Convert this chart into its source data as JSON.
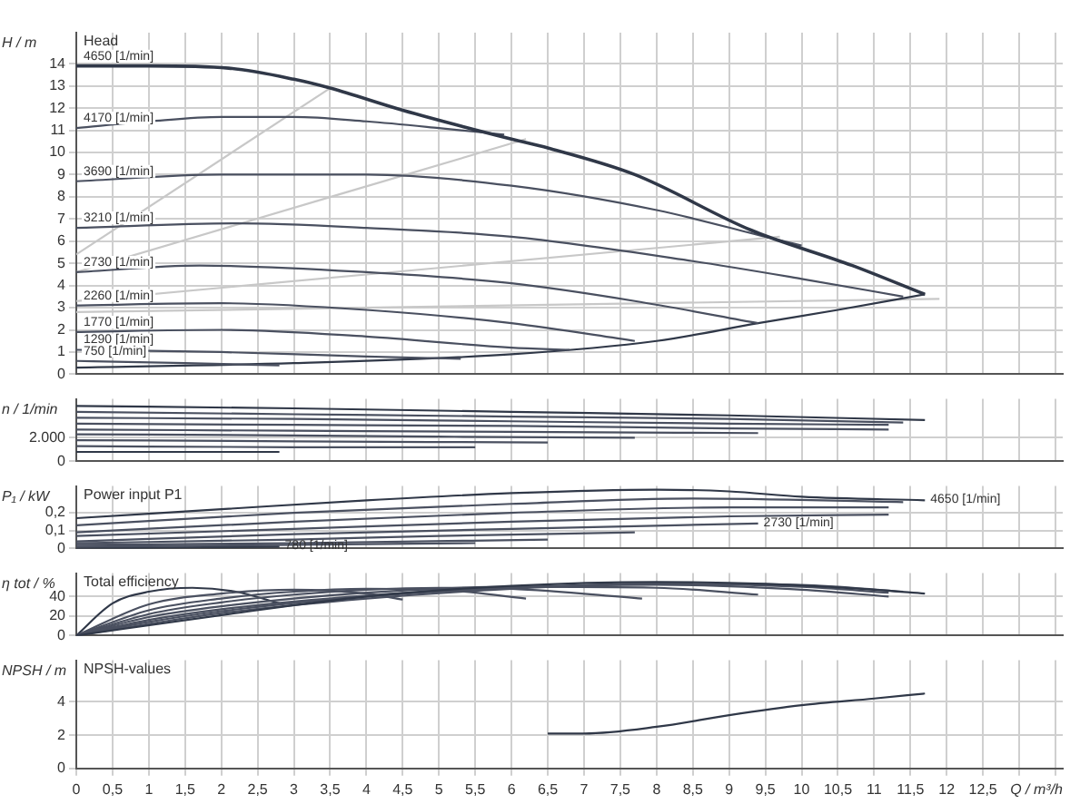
{
  "chart_data": [
    {
      "type": "line",
      "title": "Head",
      "ylabel": "H / m",
      "xlim": [
        0,
        13.6
      ],
      "ylim": [
        0,
        15.4
      ],
      "yticks": [
        0,
        1,
        2,
        3,
        4,
        5,
        6,
        7,
        8,
        9,
        10,
        11,
        12,
        13,
        14
      ],
      "xticks": [
        0,
        0.5,
        1,
        1.5,
        2,
        2.5,
        3,
        3.5,
        4,
        4.5,
        5,
        5.5,
        6,
        6.5,
        7,
        7.5,
        8,
        8.5,
        9,
        9.5,
        10,
        10.5,
        11,
        11.5,
        12,
        12.5,
        13,
        13.5
      ],
      "grid": true,
      "tick_labels": "y",
      "marker": "none",
      "line_style": "solid",
      "series": [
        {
          "name": "4650 [1/min]",
          "color": "#303848",
          "x": [
            0,
            1,
            2.1,
            3,
            3.5,
            4.5,
            6,
            6.5,
            7.7,
            9.3,
            10.7,
            11.7
          ],
          "values": [
            13.9,
            13.9,
            13.8,
            13.3,
            12.9,
            11.9,
            10.6,
            10.2,
            9.0,
            6.5,
            4.9,
            3.6
          ]
        },
        {
          "name": "4170 [1/min]",
          "color": "#4a5060",
          "x": [
            0,
            1,
            2,
            3,
            4,
            5,
            5.9
          ],
          "values": [
            11.1,
            11.4,
            11.6,
            11.6,
            11.4,
            11.1,
            10.8
          ]
        },
        {
          "name": "3690 [1/min]",
          "color": "#4a5060",
          "x": [
            0,
            2,
            4,
            6,
            8,
            9.5,
            10
          ],
          "values": [
            8.7,
            9.0,
            9.0,
            8.5,
            7.4,
            6.2,
            5.8
          ]
        },
        {
          "name": "3210 [1/min]",
          "color": "#4a5060",
          "x": [
            0,
            2.2,
            4,
            6,
            8.5,
            10,
            11.4
          ],
          "values": [
            6.6,
            6.8,
            6.6,
            6.2,
            5.1,
            4.3,
            3.5
          ]
        },
        {
          "name": "2730 [1/min]",
          "color": "#4a5060",
          "x": [
            0,
            1.7,
            4,
            6,
            7.7,
            9.4
          ],
          "values": [
            4.6,
            4.9,
            4.6,
            4.1,
            3.3,
            2.3
          ]
        },
        {
          "name": "2260 [1/min]",
          "color": "#4a5060",
          "x": [
            0,
            2,
            4,
            6,
            7.7
          ],
          "values": [
            3.1,
            3.2,
            2.9,
            2.3,
            1.5
          ]
        },
        {
          "name": "1770 [1/min]",
          "color": "#4a5060",
          "x": [
            0,
            2,
            4,
            6,
            6.8
          ],
          "values": [
            1.9,
            2.0,
            1.7,
            1.2,
            1.1
          ]
        },
        {
          "name": "1290 [1/min]",
          "color": "#4a5060",
          "x": [
            0,
            2,
            4,
            5.3
          ],
          "values": [
            1.1,
            1.0,
            0.8,
            0.7
          ]
        },
        {
          "name": "750 [1/min]",
          "color": "#4a5060",
          "x": [
            0,
            1.5,
            2.8
          ],
          "values": [
            0.6,
            0.5,
            0.4
          ]
        },
        {
          "color": "#303848",
          "x": [
            0,
            3,
            6,
            8,
            9.4,
            10.5,
            11.7
          ],
          "values": [
            0.3,
            0.5,
            0.9,
            1.5,
            2.3,
            2.9,
            3.6
          ]
        },
        {
          "color": "#c8c8c8",
          "x": [
            0,
            3.5
          ],
          "values": [
            5.4,
            12.9
          ]
        },
        {
          "color": "#c8c8c8",
          "x": [
            0,
            6.2
          ],
          "values": [
            4.6,
            10.6
          ]
        },
        {
          "color": "#c8c8c8",
          "x": [
            0,
            9.7
          ],
          "values": [
            3.3,
            6.2
          ]
        },
        {
          "color": "#c8c8c8",
          "x": [
            0,
            11.9
          ],
          "values": [
            2.8,
            3.4
          ]
        }
      ]
    },
    {
      "type": "line",
      "ylabel": "n / 1/min",
      "xlim": [
        0,
        13.6
      ],
      "ylim": [
        0,
        5300
      ],
      "yticks": [
        0,
        {
          "value": 2000,
          "label": "2.000"
        }
      ],
      "xticks": [
        0,
        0.5,
        1,
        1.5,
        2,
        2.5,
        3,
        3.5,
        4,
        4.5,
        5,
        5.5,
        6,
        6.5,
        7,
        7.5,
        8,
        8.5,
        9,
        9.5,
        10,
        10.5,
        11,
        11.5,
        12,
        12.5,
        13,
        13.5
      ],
      "grid": true,
      "tick_labels": "y",
      "marker": "none",
      "line_style": "solid",
      "series": [
        {
          "color": "#303848",
          "x": [
            0,
            3,
            6,
            9,
            11.7
          ],
          "values": [
            4700,
            4500,
            4200,
            3900,
            3500
          ]
        },
        {
          "color": "#4a5060",
          "x": [
            0,
            3,
            6,
            9,
            11.4
          ],
          "values": [
            4200,
            4000,
            3800,
            3600,
            3300
          ]
        },
        {
          "color": "#4a5060",
          "x": [
            0,
            3,
            6,
            9,
            11.2
          ],
          "values": [
            3700,
            3600,
            3400,
            3200,
            3100
          ]
        },
        {
          "color": "#4a5060",
          "x": [
            0,
            3,
            6,
            9,
            11.2
          ],
          "values": [
            3200,
            3100,
            3000,
            2800,
            2700
          ]
        },
        {
          "color": "#4a5060",
          "x": [
            0,
            3,
            6,
            9.4
          ],
          "values": [
            2700,
            2600,
            2500,
            2400
          ]
        },
        {
          "color": "#4a5060",
          "x": [
            0,
            3,
            5,
            7.7
          ],
          "values": [
            2300,
            2200,
            2100,
            2000
          ]
        },
        {
          "color": "#4a5060",
          "x": [
            0,
            3,
            6.5
          ],
          "values": [
            1800,
            1700,
            1600
          ]
        },
        {
          "color": "#4a5060",
          "x": [
            0,
            3,
            5.5
          ],
          "values": [
            1300,
            1200,
            1200
          ]
        },
        {
          "color": "#303848",
          "x": [
            0,
            2.8
          ],
          "values": [
            800,
            800
          ]
        }
      ]
    },
    {
      "type": "line",
      "title": "Power input P1",
      "ylabel": "P₁ / kW",
      "xlim": [
        0,
        13.6
      ],
      "ylim": [
        0,
        0.35
      ],
      "yticks": [
        0,
        {
          "value": 0.1,
          "label": "0,1"
        },
        {
          "value": 0.2,
          "label": "0,2"
        }
      ],
      "xticks": [
        0,
        0.5,
        1,
        1.5,
        2,
        2.5,
        3,
        3.5,
        4,
        4.5,
        5,
        5.5,
        6,
        6.5,
        7,
        7.5,
        8,
        8.5,
        9,
        9.5,
        10,
        10.5,
        11,
        11.5,
        12,
        12.5,
        13,
        13.5
      ],
      "grid": true,
      "tick_labels": "y",
      "marker": "none",
      "line_style": "solid",
      "series": [
        {
          "name": "4650 [1/min]",
          "color": "#303848",
          "x": [
            0,
            2,
            4,
            6,
            8,
            9,
            10,
            11.7
          ],
          "values": [
            0.17,
            0.22,
            0.27,
            0.31,
            0.33,
            0.32,
            0.29,
            0.27
          ]
        },
        {
          "color": "#4a5060",
          "x": [
            0,
            3,
            6,
            8.5,
            11.4
          ],
          "values": [
            0.13,
            0.2,
            0.25,
            0.28,
            0.26
          ]
        },
        {
          "color": "#4a5060",
          "x": [
            0,
            3,
            6,
            9,
            11.2
          ],
          "values": [
            0.09,
            0.15,
            0.2,
            0.23,
            0.23
          ]
        },
        {
          "color": "#4a5060",
          "x": [
            0,
            3,
            6,
            9,
            11.2
          ],
          "values": [
            0.07,
            0.11,
            0.15,
            0.18,
            0.19
          ]
        },
        {
          "name": "2730 [1/min]",
          "color": "#4a5060",
          "x": [
            0,
            3,
            6,
            9.4
          ],
          "values": [
            0.04,
            0.08,
            0.11,
            0.14
          ]
        },
        {
          "color": "#4a5060",
          "x": [
            0,
            3,
            5,
            7.7
          ],
          "values": [
            0.03,
            0.05,
            0.07,
            0.09
          ]
        },
        {
          "color": "#4a5060",
          "x": [
            0,
            3,
            6.5
          ],
          "values": [
            0.02,
            0.03,
            0.05
          ]
        },
        {
          "color": "#4a5060",
          "x": [
            0,
            3,
            5.5
          ],
          "values": [
            0.01,
            0.02,
            0.03
          ]
        },
        {
          "name": "780 [1/min]",
          "color": "#303848",
          "x": [
            0,
            2.8
          ],
          "values": [
            0.0,
            0.01
          ]
        }
      ]
    },
    {
      "type": "line",
      "title": "Total efficiency",
      "ylabel": "η tot / %",
      "xlim": [
        0,
        13.6
      ],
      "ylim": [
        0,
        64
      ],
      "yticks": [
        0,
        20,
        40
      ],
      "xticks": [
        0,
        0.5,
        1,
        1.5,
        2,
        2.5,
        3,
        3.5,
        4,
        4.5,
        5,
        5.5,
        6,
        6.5,
        7,
        7.5,
        8,
        8.5,
        9,
        9.5,
        10,
        10.5,
        11,
        11.5,
        12,
        12.5,
        13,
        13.5
      ],
      "grid": true,
      "tick_labels": "y",
      "marker": "none",
      "line_style": "solid",
      "series": [
        {
          "color": "#303848",
          "x": [
            0,
            2,
            4,
            6,
            8,
            9.5,
            11,
            11.7
          ],
          "values": [
            0,
            21,
            40,
            51,
            55,
            53,
            47,
            43
          ]
        },
        {
          "color": "#4a5060",
          "x": [
            0,
            1,
            2,
            4,
            6,
            8,
            10,
            11.4
          ],
          "values": [
            0,
            12,
            23,
            38,
            48,
            53,
            52,
            45
          ]
        },
        {
          "color": "#4a5060",
          "x": [
            0,
            1,
            2,
            4,
            6,
            8,
            10,
            11.2
          ],
          "values": [
            0,
            14,
            25,
            40,
            49,
            53,
            50,
            44
          ]
        },
        {
          "color": "#4a5060",
          "x": [
            0,
            1,
            2,
            4,
            6,
            8,
            10,
            11.2
          ],
          "values": [
            0,
            16,
            27,
            41,
            49,
            52,
            47,
            40
          ]
        },
        {
          "color": "#4a5060",
          "x": [
            0,
            1,
            2,
            4,
            6,
            8,
            9.4
          ],
          "values": [
            0,
            19,
            30,
            44,
            50,
            49,
            42
          ]
        },
        {
          "color": "#4a5060",
          "x": [
            0,
            1,
            2,
            3,
            4,
            5,
            6,
            7.8
          ],
          "values": [
            0,
            22,
            34,
            42,
            47,
            49,
            48,
            38
          ]
        },
        {
          "color": "#4a5060",
          "x": [
            0,
            1,
            2,
            3,
            4,
            5,
            6.2
          ],
          "values": [
            0,
            26,
            38,
            45,
            48,
            47,
            38
          ]
        },
        {
          "color": "#4a5060",
          "x": [
            0,
            1,
            2,
            3,
            4,
            4.5
          ],
          "values": [
            0,
            32,
            43,
            47,
            43,
            37
          ]
        },
        {
          "color": "#303848",
          "x": [
            0,
            0.5,
            1,
            1.6,
            2.2,
            2.8
          ],
          "values": [
            0,
            33,
            45,
            49,
            45,
            33
          ]
        }
      ]
    },
    {
      "type": "line",
      "title": "NPSH-values",
      "ylabel": "NPSH / m",
      "xlabel": "Q / m³/h",
      "xlim": [
        0,
        13.6
      ],
      "ylim": [
        0,
        6.5
      ],
      "yticks": [
        0,
        2,
        4
      ],
      "xticks": [
        0,
        {
          "value": 0.5,
          "label": "0,5"
        },
        1,
        {
          "value": 1.5,
          "label": "1,5"
        },
        2,
        {
          "value": 2.5,
          "label": "2,5"
        },
        3,
        {
          "value": 3.5,
          "label": "3,5"
        },
        4,
        {
          "value": 4.5,
          "label": "4,5"
        },
        5,
        {
          "value": 5.5,
          "label": "5,5"
        },
        6,
        {
          "value": 6.5,
          "label": "6,5"
        },
        7,
        {
          "value": 7.5,
          "label": "7,5"
        },
        8,
        {
          "value": 8.5,
          "label": "8,5"
        },
        9,
        {
          "value": 9.5,
          "label": "9,5"
        },
        10,
        {
          "value": 10.5,
          "label": "10,5"
        },
        11,
        {
          "value": 11.5,
          "label": "11,5"
        },
        12,
        {
          "value": 12.5,
          "label": "12,5"
        },
        {
          "value": 13,
          "label": null
        },
        {
          "value": 13.5,
          "label": null
        }
      ],
      "grid": true,
      "marker": "none",
      "line_style": "solid",
      "series": [
        {
          "color": "#303848",
          "x": [
            6.5,
            7,
            8,
            9,
            10,
            11,
            11.7
          ],
          "values": [
            2.1,
            2.1,
            2.5,
            3.2,
            3.8,
            4.2,
            4.5
          ]
        }
      ]
    }
  ]
}
